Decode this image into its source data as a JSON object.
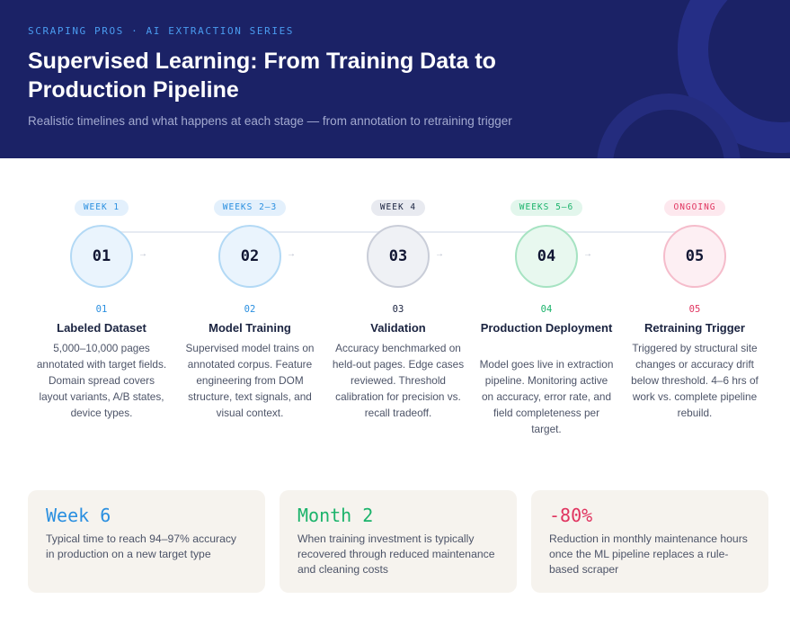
{
  "header": {
    "eyebrow": "SCRAPING PROS · AI EXTRACTION SERIES",
    "title": "Supervised Learning: From Training Data to Production Pipeline",
    "subtitle": "Realistic timelines and what happens at each stage — from annotation to retraining trigger"
  },
  "colors": {
    "header_bg": "#1b2266",
    "blue": "#2a8fe0",
    "green": "#1bb36b",
    "pink": "#e0335f",
    "navy": "#1a2340"
  },
  "stages": [
    {
      "badge": "WEEK 1",
      "circle": "01",
      "num": "01",
      "title": "Labeled Dataset",
      "desc": "5,000–10,000 pages annotated with target fields. Domain spread covers layout variants, A/B states, device types."
    },
    {
      "badge": "WEEKS 2–3",
      "circle": "02",
      "num": "02",
      "title": "Model Training",
      "desc": "Supervised model trains on annotated corpus. Feature engineering from DOM structure, text signals, and visual context."
    },
    {
      "badge": "WEEK 4",
      "circle": "03",
      "num": "03",
      "title": "Validation",
      "desc": "Accuracy benchmarked on held-out pages. Edge cases reviewed. Threshold calibration for precision vs. recall tradeoff."
    },
    {
      "badge": "WEEKS 5–6",
      "circle": "04",
      "num": "04",
      "title": "Production Deployment",
      "desc": "Model goes live in extraction pipeline. Monitoring active on accuracy, error rate, and field completeness per target."
    },
    {
      "badge": "ONGOING",
      "circle": "05",
      "num": "05",
      "title": "Retraining Trigger",
      "desc": "Triggered by structural site changes or accuracy drift below threshold. 4–6 hrs of work vs. complete pipeline rebuild."
    }
  ],
  "arrow_glyph": "→",
  "cards": [
    {
      "value": "Week 6",
      "text": "Typical time to reach 94–97% accuracy in production on a new target type"
    },
    {
      "value": "Month 2",
      "text": "When training investment is typically recovered through reduced maintenance and cleaning costs"
    },
    {
      "value": "-80%",
      "text": "Reduction in monthly maintenance hours once the ML pipeline replaces a rule-based scraper"
    }
  ]
}
